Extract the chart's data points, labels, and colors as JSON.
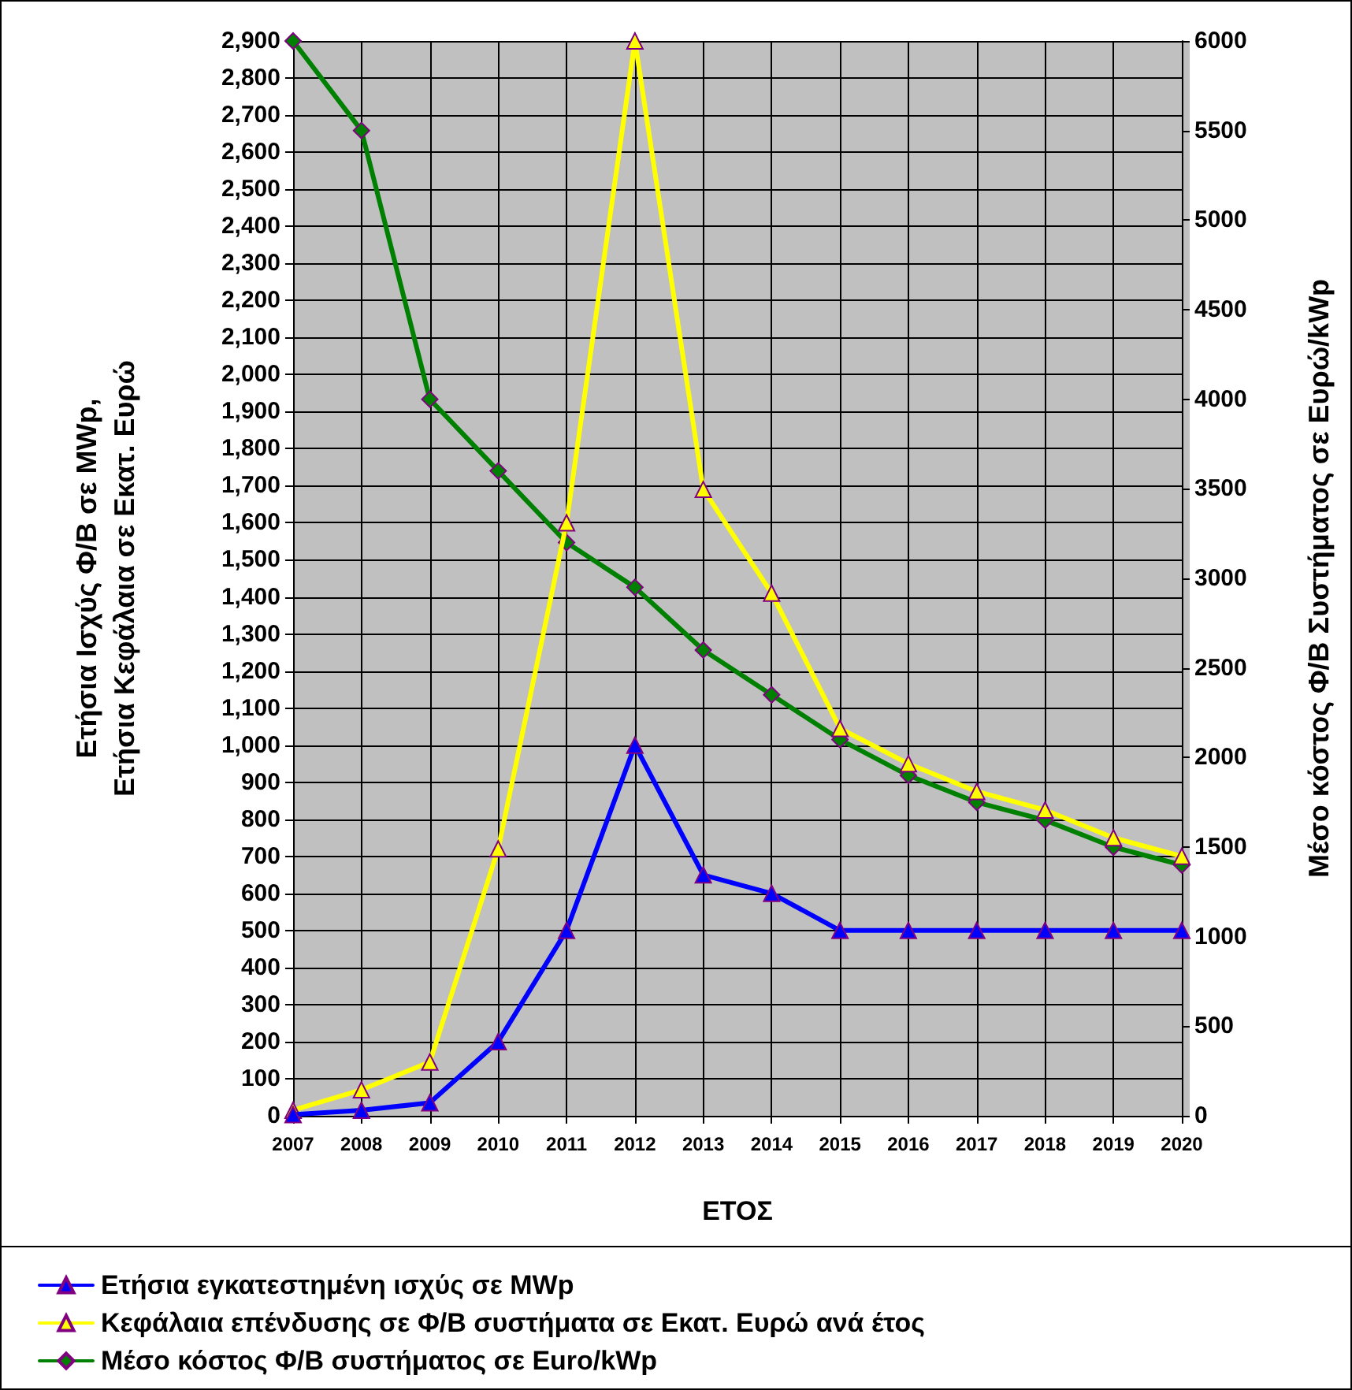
{
  "chart_data": {
    "type": "line",
    "xlabel": "ΕΤΟΣ",
    "ylabel": "Ετήσια Ισχύς Φ/Β σε MWp,\nΕτήσια Κεφάλαια σε Εκατ. Ευρώ",
    "y2label": "Μέσο κόστος Φ/Β Συστήματος σε Ευρώ/kWp",
    "categories": [
      "2007",
      "2008",
      "2009",
      "2010",
      "2011",
      "2012",
      "2013",
      "2014",
      "2015",
      "2016",
      "2017",
      "2018",
      "2019",
      "2020"
    ],
    "series": [
      {
        "name": "Ετήσια εγκατεστημένη ισχύς σε MWp",
        "color": "#0000ff",
        "marker": "triangle",
        "values": [
          3,
          15,
          35,
          200,
          500,
          1000,
          650,
          600,
          500,
          500,
          500,
          500,
          500,
          500
        ]
      },
      {
        "name": "Κεφάλαια επένδυσης σε Φ/Β συστήματα σε Εκατ. Ευρώ ανά έτος",
        "color": "#ffff00",
        "marker": "triangle",
        "values": [
          15,
          70,
          145,
          720,
          1600,
          2900,
          1690,
          1410,
          1045,
          950,
          875,
          825,
          750,
          700
        ]
      },
      {
        "name": "Μέσο κόστος Φ/Β συστήματος σε Euro/kWp",
        "color": "#008000",
        "marker": "diamond",
        "axis": "y2",
        "values": [
          6000,
          5500,
          4000,
          3600,
          3200,
          2950,
          2600,
          2350,
          2100,
          1900,
          1750,
          1650,
          1500,
          1400
        ]
      }
    ],
    "ylim": [
      0,
      2900
    ],
    "yticks": [
      0,
      100,
      200,
      300,
      400,
      500,
      600,
      700,
      800,
      900,
      {
        "value": 1000,
        "label": "1,000"
      },
      {
        "value": 1100,
        "label": "1,100"
      },
      {
        "value": 1200,
        "label": "1,200"
      },
      {
        "value": 1300,
        "label": "1,300"
      },
      {
        "value": 1400,
        "label": "1,400"
      },
      {
        "value": 1500,
        "label": "1,500"
      },
      {
        "value": 1600,
        "label": "1,600"
      },
      {
        "value": 1700,
        "label": "1,700"
      },
      {
        "value": 1800,
        "label": "1,800"
      },
      {
        "value": 1900,
        "label": "1,900"
      },
      {
        "value": 2000,
        "label": "2,000"
      },
      {
        "value": 2100,
        "label": "2,100"
      },
      {
        "value": 2200,
        "label": "2,200"
      },
      {
        "value": 2300,
        "label": "2,300"
      },
      {
        "value": 2400,
        "label": "2,400"
      },
      {
        "value": 2500,
        "label": "2,500"
      },
      {
        "value": 2600,
        "label": "2,600"
      },
      {
        "value": 2700,
        "label": "2,700"
      },
      {
        "value": 2800,
        "label": "2,800"
      },
      {
        "value": 2900,
        "label": "2,900"
      }
    ],
    "y2lim": [
      0,
      6000
    ],
    "y2ticks": [
      0,
      500,
      1000,
      1500,
      2000,
      2500,
      3000,
      3500,
      4000,
      4500,
      5000,
      5500,
      6000
    ],
    "grid": true,
    "legend": "bottom",
    "line_style": "solid"
  }
}
